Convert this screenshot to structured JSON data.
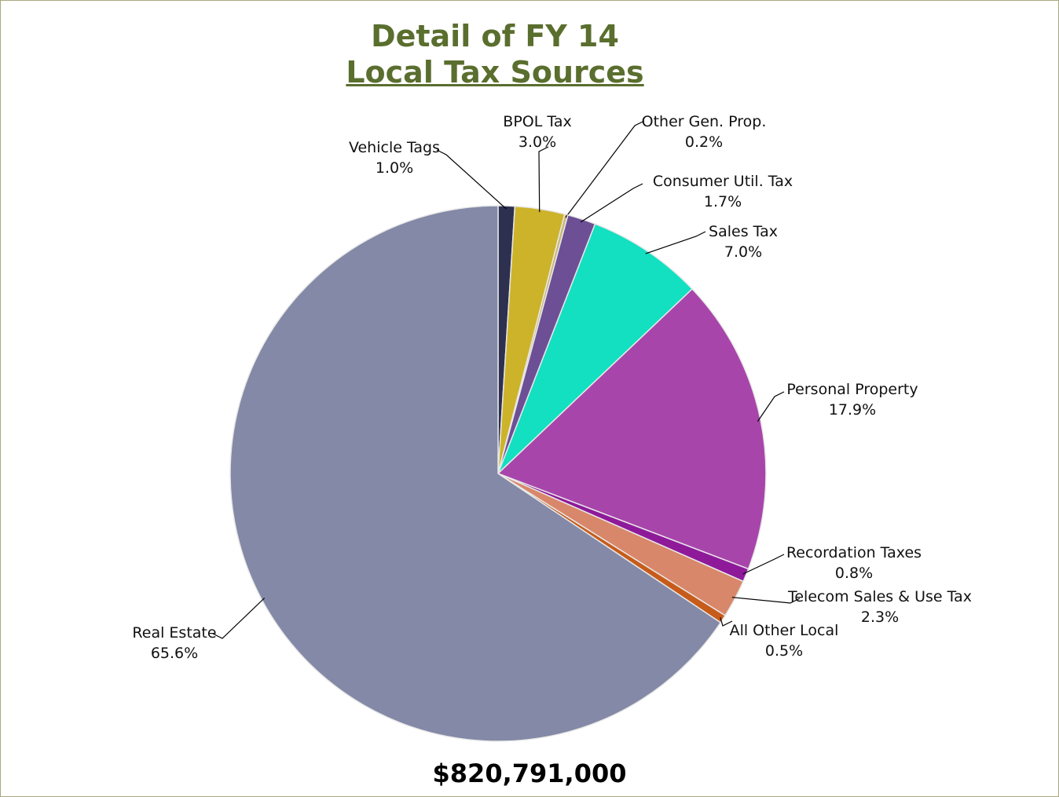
{
  "chart_data": {
    "type": "pie",
    "title": "Detail of FY 14",
    "subtitle": "Local Tax Sources",
    "annotation": "$820,791,000",
    "categories": [
      "Vehicle Tags",
      "BPOL Tax",
      "Other Gen. Prop.",
      "Consumer Util. Tax",
      "Sales Tax",
      "Personal Property",
      "Recordation Taxes",
      "Telecom Sales & Use Tax",
      "All Other Local",
      "Real Estate"
    ],
    "values": [
      1.0,
      3.0,
      0.2,
      1.7,
      7.0,
      17.9,
      0.8,
      2.3,
      0.5,
      65.6
    ],
    "value_labels": [
      "1.0%",
      "3.0%",
      "0.2%",
      "1.7%",
      "7.0%",
      "17.9%",
      "0.8%",
      "2.3%",
      "0.5%",
      "65.6%"
    ],
    "colors": [
      "#2e3050",
      "#cdb32a",
      "#c8b878",
      "#6d4f96",
      "#12e0c0",
      "#a845ab",
      "#8e1a9a",
      "#d8876a",
      "#c75b1a",
      "#8389a6"
    ]
  }
}
